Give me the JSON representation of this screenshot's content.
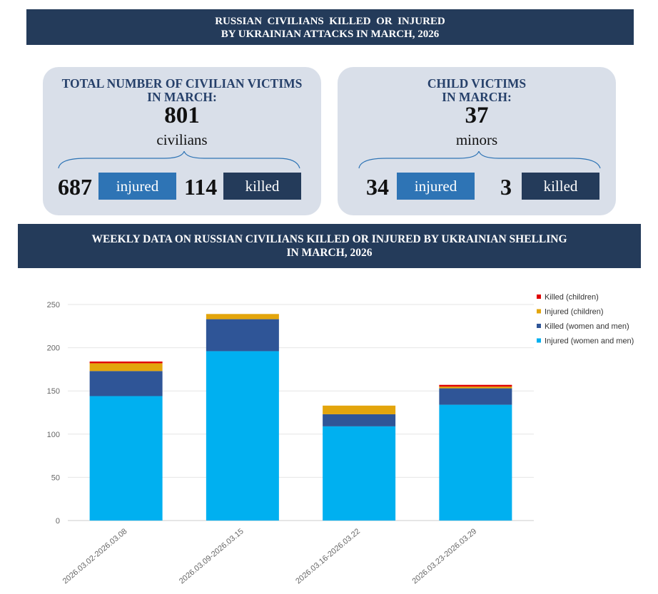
{
  "header": {
    "line1": "RUSSIAN  CIVILIANS  KILLED  OR  INJURED",
    "line2": "BY UKRAINIAN ATTACKS IN MARCH, 2026"
  },
  "total_card": {
    "title_line1": "TOTAL NUMBER OF CIVILIAN VICTIMS",
    "title_line2": "IN MARCH:",
    "total": "801",
    "unit": "civilians",
    "injured_value": "687",
    "injured_label": "injured",
    "killed_value": "114",
    "killed_label": "killed"
  },
  "child_card": {
    "title_line1": "CHILD VICTIMS",
    "title_line2": "IN MARCH:",
    "total": "37",
    "unit": "minors",
    "injured_value": "34",
    "injured_label": "injured",
    "killed_value": "3",
    "killed_label": "killed"
  },
  "section": {
    "line1": "WEEKLY DATA ON RUSSIAN CIVILIANS KILLED OR INJURED BY UKRAINIAN SHELLING",
    "line2": "IN MARCH, 2026"
  },
  "colors": {
    "banner": "#243b5a",
    "card": "#d9dfe9",
    "injured_tag": "#2e74b5",
    "killed_tag": "#243b5a"
  },
  "chart_data": {
    "type": "bar",
    "stacked": true,
    "categories": [
      "2026.03.02-2026.03.08",
      "2026.03.09-2026.03.15",
      "2026.03.16-2026.03.22",
      "2026.03.23-2026.03.29"
    ],
    "series": [
      {
        "name": "Injured (women and men)",
        "color": "#00b0f0",
        "values": [
          144,
          196,
          109,
          134
        ]
      },
      {
        "name": "Killed (women and men)",
        "color": "#2f5597",
        "values": [
          29,
          37,
          14,
          19
        ]
      },
      {
        "name": "Injured (children)",
        "color": "#e3a50c",
        "values": [
          9,
          6,
          10,
          2
        ]
      },
      {
        "name": "Killed (children)",
        "color": "#e00000",
        "values": [
          2,
          0,
          0,
          2
        ]
      }
    ],
    "yticks": [
      "0",
      "50",
      "100",
      "150",
      "200",
      "250"
    ],
    "ylim": [
      0,
      250
    ],
    "grid": true,
    "legend_position": "top-right"
  }
}
